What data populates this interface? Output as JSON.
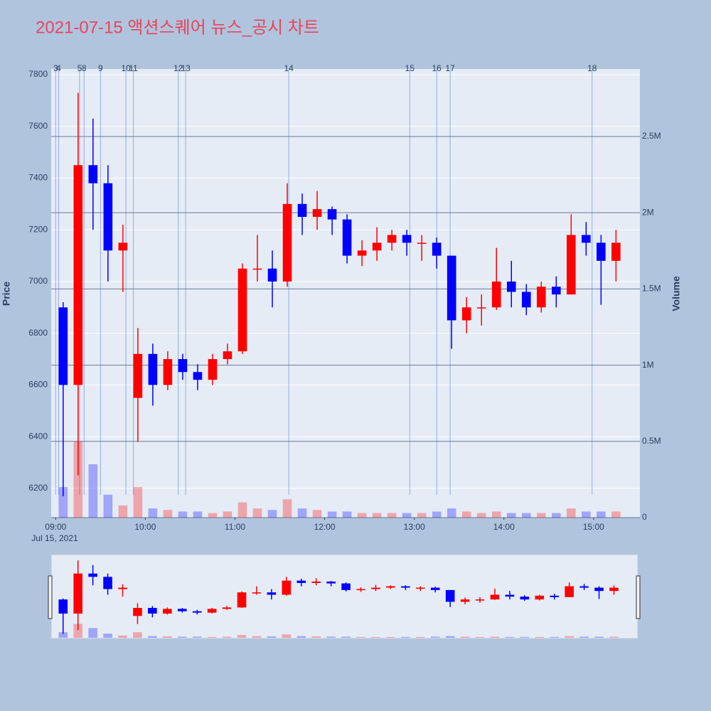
{
  "chart_data": {
    "type": "candlestick",
    "title": "2021-07-15 액션스퀘어 뉴스_공시 차트",
    "y_title": "Price",
    "y2_title": "Volume",
    "x_date_label": "Jul 15, 2021",
    "increasing_color": "#ff0000",
    "decreasing_color": "#0000ff",
    "news_color": "#4169e1",
    "x": [
      "2021-07-15 09:05",
      "2021-07-15 09:15",
      "2021-07-15 09:25",
      "2021-07-15 09:35",
      "2021-07-15 09:45",
      "2021-07-15 09:55",
      "2021-07-15 10:05",
      "2021-07-15 10:15",
      "2021-07-15 10:25",
      "2021-07-15 10:35",
      "2021-07-15 10:45",
      "2021-07-15 10:55",
      "2021-07-15 11:05",
      "2021-07-15 11:15",
      "2021-07-15 11:25",
      "2021-07-15 11:35",
      "2021-07-15 11:45",
      "2021-07-15 11:55",
      "2021-07-15 12:05",
      "2021-07-15 12:15",
      "2021-07-15 12:25",
      "2021-07-15 12:35",
      "2021-07-15 12:45",
      "2021-07-15 12:55",
      "2021-07-15 13:05",
      "2021-07-15 13:15",
      "2021-07-15 13:25",
      "2021-07-15 13:35",
      "2021-07-15 13:45",
      "2021-07-15 13:55",
      "2021-07-15 14:05",
      "2021-07-15 14:15",
      "2021-07-15 14:25",
      "2021-07-15 14:35",
      "2021-07-15 14:45",
      "2021-07-15 14:55",
      "2021-07-15 15:05",
      "2021-07-15 15:15"
    ],
    "open": [
      6900,
      6600,
      7450,
      7380,
      7120,
      6550,
      6720,
      6600,
      6700,
      6650,
      6620,
      6700,
      6730,
      7050,
      7050,
      7000,
      7300,
      7250,
      7280,
      7240,
      7100,
      7120,
      7150,
      7180,
      7150,
      7150,
      7100,
      6850,
      6900,
      6900,
      7000,
      6960,
      6900,
      6980,
      6950,
      7180,
      7150,
      7080
    ],
    "high": [
      6920,
      7730,
      7630,
      7450,
      7220,
      6820,
      6760,
      6730,
      6720,
      6680,
      6720,
      6760,
      7070,
      7180,
      7120,
      7380,
      7340,
      7350,
      7290,
      7260,
      7160,
      7210,
      7200,
      7200,
      7180,
      7170,
      7100,
      6940,
      6950,
      7130,
      7080,
      6990,
      7000,
      7020,
      7260,
      7230,
      7180,
      7200
    ],
    "low": [
      6170,
      6250,
      7200,
      7000,
      6960,
      6380,
      6520,
      6580,
      6620,
      6580,
      6600,
      6680,
      6720,
      7000,
      6900,
      6980,
      7180,
      7200,
      7180,
      7070,
      7060,
      7080,
      7120,
      7100,
      7080,
      7050,
      6740,
      6800,
      6830,
      6890,
      6900,
      6870,
      6880,
      6900,
      6950,
      7100,
      6910,
      7000
    ],
    "close": [
      6600,
      7450,
      7380,
      7120,
      7150,
      6720,
      6600,
      6700,
      6650,
      6620,
      6700,
      6730,
      7050,
      7050,
      7000,
      7300,
      7250,
      7280,
      7240,
      7100,
      7120,
      7150,
      7180,
      7150,
      7150,
      7100,
      6850,
      6900,
      6900,
      7000,
      6960,
      6900,
      6980,
      6950,
      7180,
      7150,
      7080,
      7150
    ],
    "volume": [
      200000,
      500000,
      350000,
      150000,
      80000,
      200000,
      60000,
      50000,
      40000,
      40000,
      30000,
      40000,
      100000,
      60000,
      50000,
      120000,
      60000,
      50000,
      40000,
      40000,
      30000,
      30000,
      30000,
      30000,
      30000,
      40000,
      60000,
      40000,
      30000,
      40000,
      30000,
      30000,
      30000,
      30000,
      60000,
      40000,
      40000,
      40000
    ],
    "xlim": [
      "2021-07-15 08:57",
      "2021-07-15 15:31"
    ],
    "xticks": [
      {
        "value": "2021-07-15 09:00",
        "label": "09:00"
      },
      {
        "value": "2021-07-15 10:00",
        "label": "10:00"
      },
      {
        "value": "2021-07-15 11:00",
        "label": "11:00"
      },
      {
        "value": "2021-07-15 12:00",
        "label": "12:00"
      },
      {
        "value": "2021-07-15 13:00",
        "label": "13:00"
      },
      {
        "value": "2021-07-15 14:00",
        "label": "14:00"
      },
      {
        "value": "2021-07-15 15:00",
        "label": "15:00"
      }
    ],
    "ylim": [
      6087,
      7822
    ],
    "yticks": [
      6200,
      6400,
      6600,
      6800,
      7000,
      7200,
      7400,
      7600,
      7800
    ],
    "y2lim": [
      0,
      2943000
    ],
    "y2ticks": [
      0,
      {
        "value": 500000,
        "label": "0.5M"
      },
      {
        "value": 1000000,
        "label": "1M"
      },
      {
        "value": 1500000,
        "label": "1.5M"
      },
      {
        "value": 2000000,
        "label": "2M"
      },
      {
        "value": 2500000,
        "label": "2.5M"
      }
    ],
    "news": [
      {
        "x": "2021-07-15 09:00",
        "label": "3"
      },
      {
        "x": "2021-07-15 09:02",
        "label": "4"
      },
      {
        "x": "2021-07-15 09:16",
        "label": "5"
      },
      {
        "x": "2021-07-15 09:19",
        "label": "8"
      },
      {
        "x": "2021-07-15 09:30",
        "label": "9"
      },
      {
        "x": "2021-07-15 09:47",
        "label": "10"
      },
      {
        "x": "2021-07-15 09:52",
        "label": "11"
      },
      {
        "x": "2021-07-15 10:22",
        "label": "12"
      },
      {
        "x": "2021-07-15 10:27",
        "label": "13"
      },
      {
        "x": "2021-07-15 11:36",
        "label": "14"
      },
      {
        "x": "2021-07-15 12:57",
        "label": "15"
      },
      {
        "x": "2021-07-15 13:15",
        "label": "16"
      },
      {
        "x": "2021-07-15 13:24",
        "label": "17"
      },
      {
        "x": "2021-07-15 14:59",
        "label": "18"
      }
    ]
  }
}
